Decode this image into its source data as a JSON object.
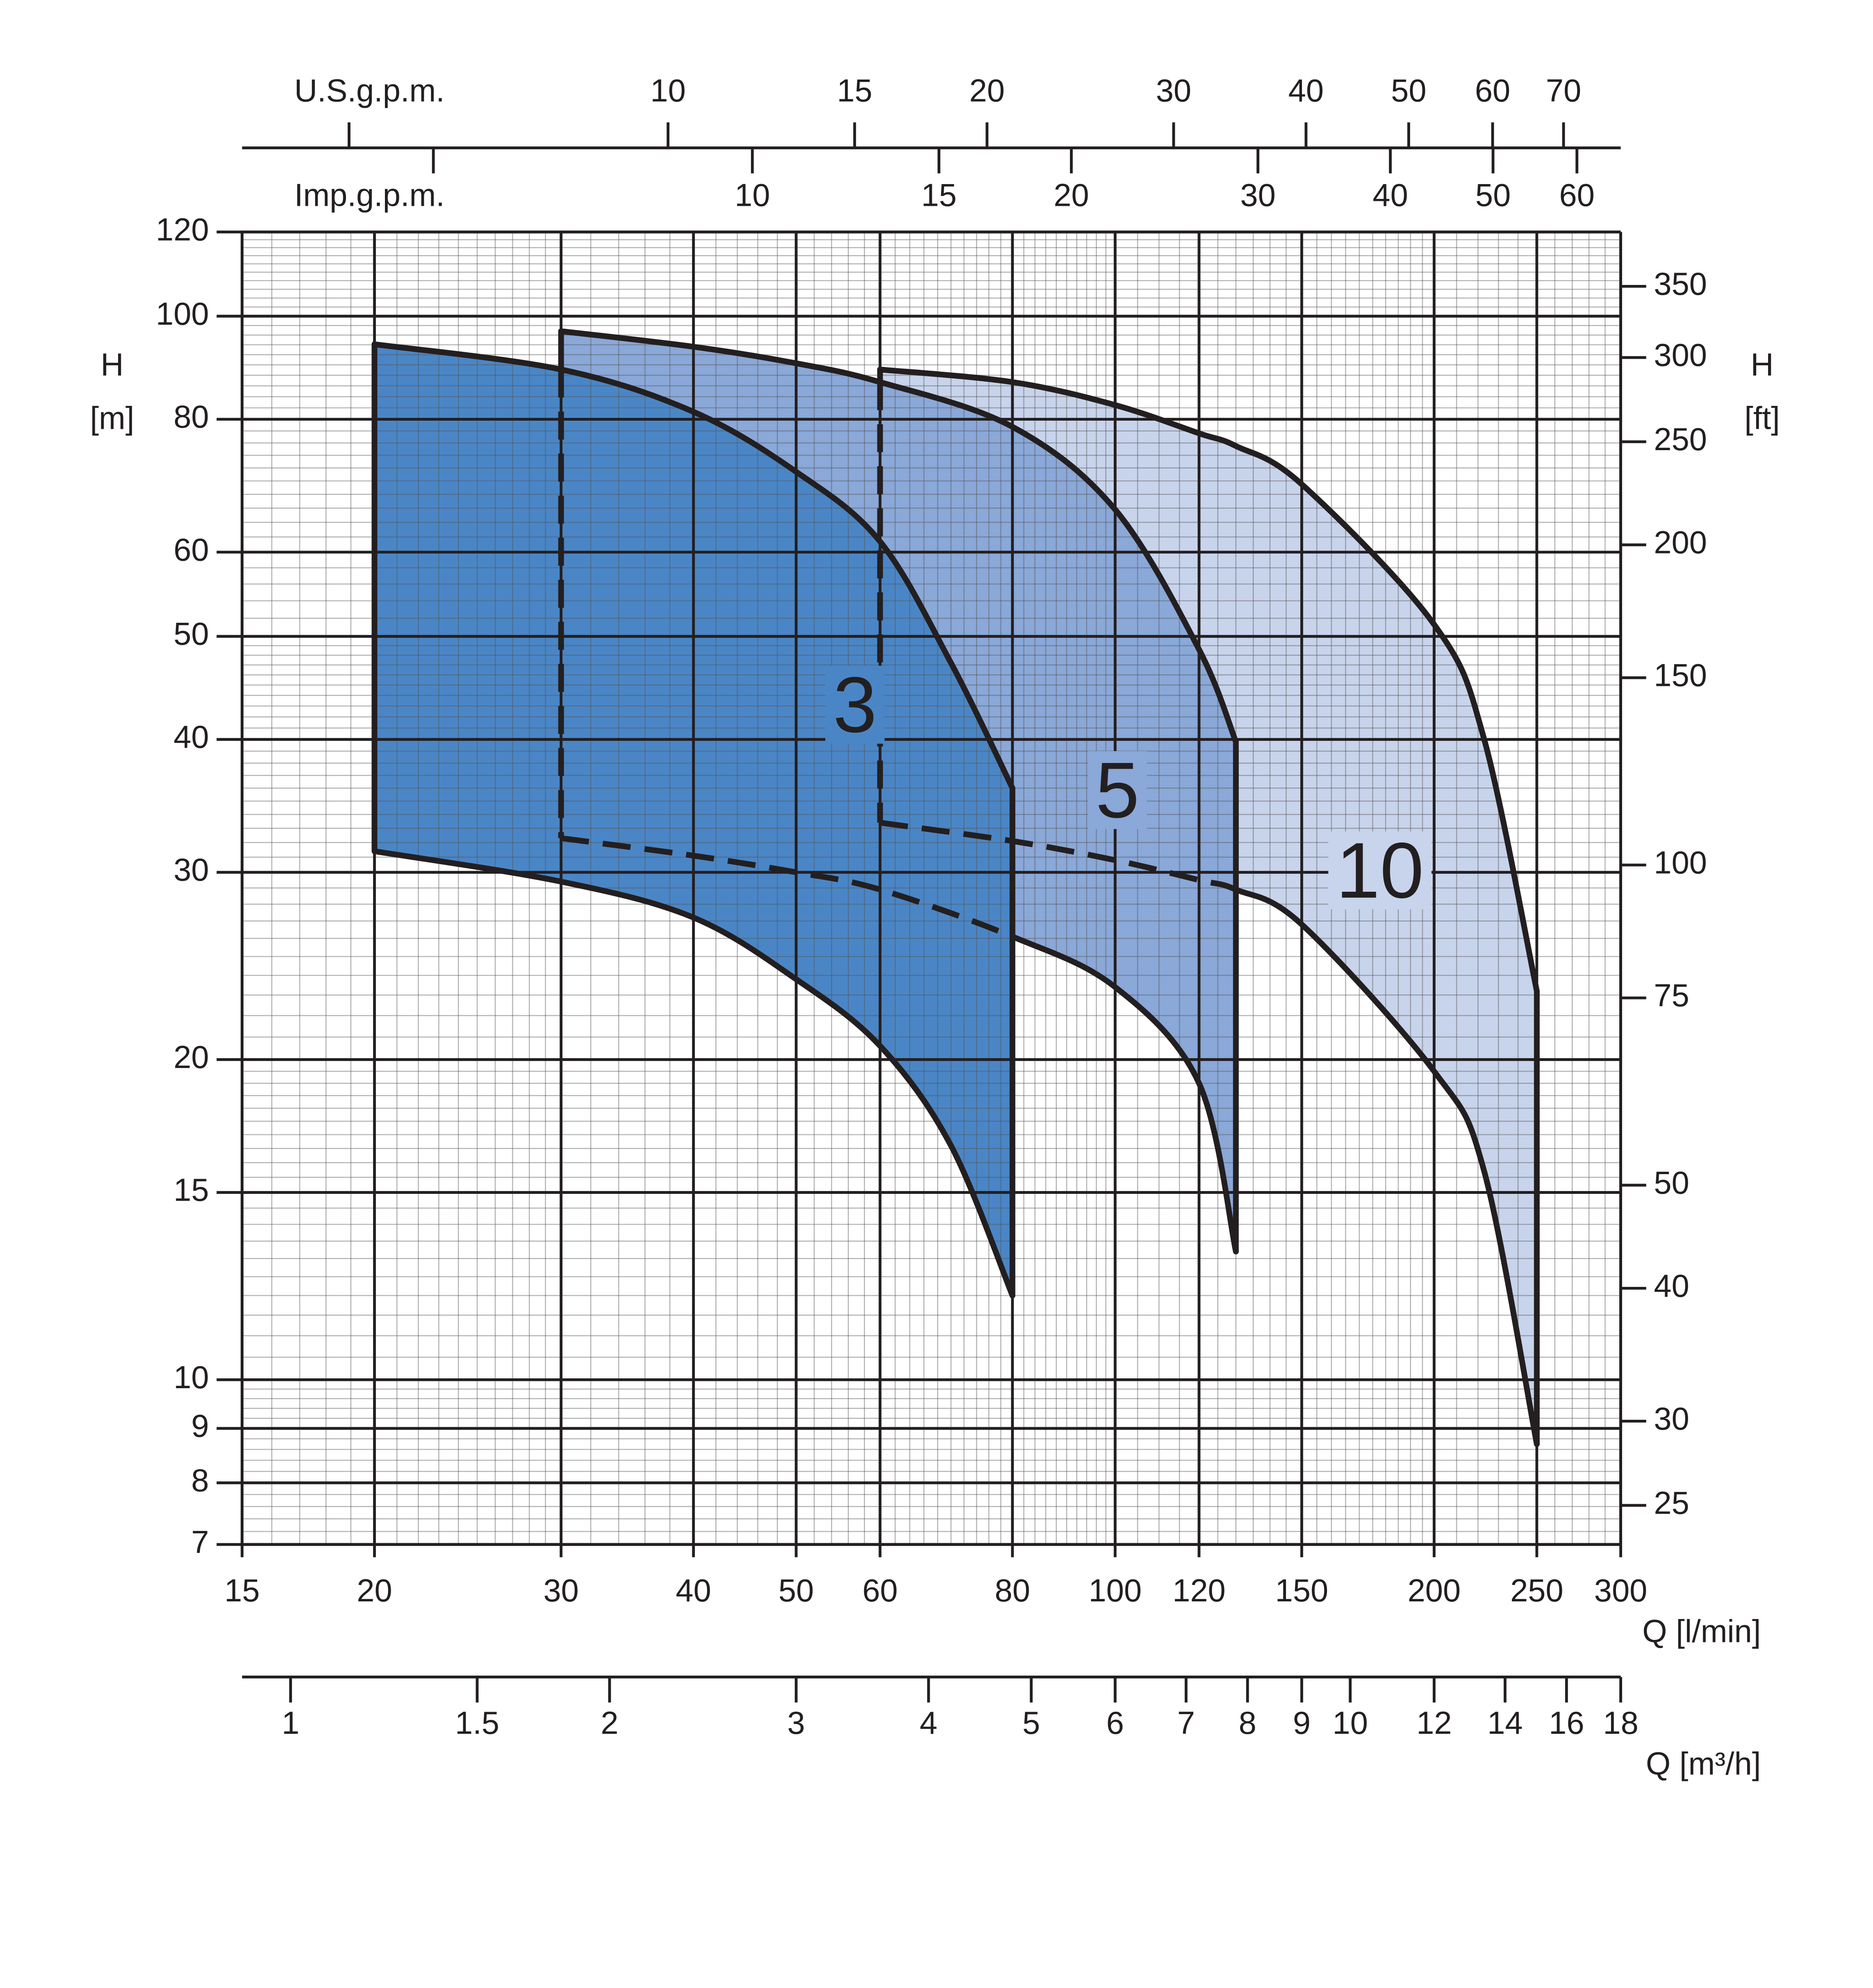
{
  "chart_data": {
    "type": "range",
    "xlabel": "Q [l/min]",
    "ylabel": "H",
    "ylabel_unit": "[m]",
    "y2label": "H",
    "y2label_unit": "[ft]",
    "log_x": true,
    "log_y": true,
    "grid": true,
    "xlim": [
      15,
      300
    ],
    "xticks": [
      15,
      20,
      30,
      40,
      50,
      60,
      80,
      100,
      120,
      150,
      200,
      250,
      300
    ],
    "ylim": [
      7,
      120
    ],
    "yticks": [
      7,
      8,
      9,
      10,
      15,
      20,
      30,
      40,
      50,
      60,
      80,
      100,
      120
    ],
    "y2lim": [
      22.97,
      393.7
    ],
    "y2ticks": [
      25,
      30,
      40,
      50,
      75,
      100,
      150,
      200,
      250,
      300,
      350
    ],
    "x_us_gpm": {
      "label": "U.S.g.p.m.",
      "lim": [
        3.963,
        79.26
      ],
      "ticks": [
        10,
        15,
        20,
        30,
        40,
        50,
        60,
        70
      ],
      "minor_ticks": [
        5
      ]
    },
    "x_imp_gpm": {
      "label": "Imp.g.p.m.",
      "lim": [
        3.2996,
        65.99
      ],
      "ticks": [
        10,
        15,
        20,
        30,
        40,
        50,
        60
      ],
      "minor_ticks": [
        5
      ]
    },
    "x_m3h": {
      "label": "Q [m³/h]",
      "lim": [
        0.9,
        18
      ],
      "ticks": [
        1,
        1.5,
        2,
        3,
        4,
        5,
        6,
        7,
        8,
        9,
        10,
        12,
        14,
        16,
        18
      ]
    },
    "x_minor_grid": [
      16,
      17,
      18,
      19,
      21,
      22,
      23,
      24,
      25,
      26,
      27,
      28,
      29,
      32,
      34,
      36,
      38,
      42,
      44,
      46,
      48,
      52,
      54,
      56,
      58,
      62,
      64,
      66,
      68,
      70,
      72,
      74,
      76,
      78,
      82,
      84,
      86,
      88,
      90,
      92,
      94,
      96,
      98,
      105,
      110,
      115,
      125,
      130,
      135,
      140,
      145,
      155,
      160,
      165,
      170,
      175,
      180,
      185,
      190,
      195,
      210,
      220,
      230,
      240,
      260,
      270,
      280,
      290
    ],
    "y_minor_grid": [
      7.2,
      7.4,
      7.6,
      7.8,
      8.2,
      8.4,
      8.6,
      8.8,
      9.2,
      9.4,
      9.6,
      9.8,
      10.5,
      11,
      11.5,
      12,
      12.5,
      13,
      13.5,
      14,
      14.5,
      15.5,
      16,
      16.5,
      17,
      17.5,
      18,
      18.5,
      19,
      19.5,
      21,
      22,
      23,
      24,
      25,
      26,
      27,
      28,
      29,
      31,
      32,
      33,
      34,
      35,
      36,
      37,
      38,
      39,
      41,
      42,
      43,
      44,
      45,
      46,
      47,
      48,
      49,
      52,
      54,
      56,
      58,
      62,
      64,
      66,
      68,
      70,
      72,
      74,
      76,
      78,
      82,
      84,
      86,
      88,
      90,
      92,
      94,
      96,
      98,
      102,
      104,
      106,
      108,
      110,
      112,
      114,
      116,
      118
    ],
    "series": [
      {
        "name": "3",
        "color": "#4a86c6",
        "x": [
          20,
          30,
          40,
          50,
          60,
          70,
          80
        ],
        "upper": [
          94.1,
          89.1,
          81.3,
          71.4,
          61.4,
          47.2,
          36.0
        ],
        "lower": [
          31.4,
          29.4,
          27.2,
          23.8,
          20.6,
          16.6,
          12.0
        ]
      },
      {
        "name": "5",
        "color": "#8aa8d8",
        "x": [
          30,
          40,
          50,
          60,
          80,
          100,
          120,
          130
        ],
        "upper": [
          96.8,
          93.6,
          90.3,
          86.7,
          78.7,
          65.8,
          48.6,
          39.8
        ],
        "lower": [
          32.3,
          31.1,
          30.0,
          28.9,
          26.1,
          23.4,
          19.0,
          13.2
        ]
      },
      {
        "name": "10",
        "color": "#c8d4ec",
        "x": [
          60,
          80,
          100,
          120,
          130,
          150,
          200,
          223,
          250
        ],
        "upper": [
          89.1,
          86.7,
          82.5,
          77.6,
          75.5,
          69.5,
          51.3,
          40.0,
          23.2
        ],
        "lower": [
          33.4,
          32.1,
          30.8,
          29.5,
          28.9,
          26.8,
          19.5,
          15.7,
          8.7
        ]
      }
    ]
  }
}
